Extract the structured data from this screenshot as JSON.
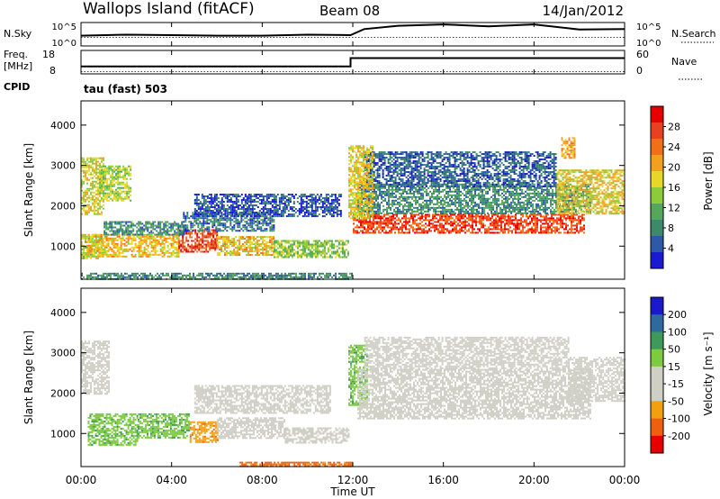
{
  "header": {
    "station": "Wallops Island (fitACF)",
    "beam": "Beam 08",
    "date": "14/Jan/2012"
  },
  "chart_data": [
    {
      "panel": "noise",
      "type": "line",
      "left_label": "N.Sky",
      "right_label": "N.Search",
      "y_ticks": [
        "10^5",
        "10^0"
      ],
      "y_scale": "log",
      "series": [
        {
          "name": "N.Sky",
          "x_hours": [
            0,
            2,
            4,
            6,
            8,
            10,
            11.9,
            12.5,
            14,
            16,
            18,
            20,
            22,
            24
          ],
          "values": [
            2.2,
            2.4,
            2.3,
            2.2,
            2.2,
            2.4,
            2.3,
            3.6,
            4.3,
            4.6,
            4.2,
            4.6,
            3.5,
            3.6
          ]
        },
        {
          "name": "N.Search",
          "x_hours": [
            0,
            24
          ],
          "values": [
            1.8,
            1.8
          ]
        }
      ]
    },
    {
      "panel": "frequency",
      "type": "line",
      "left_label": "Freq.",
      "left_unit": "[MHz]",
      "right_label": "Nave",
      "left_ticks": [
        18,
        8
      ],
      "right_ticks": [
        60,
        0
      ],
      "series": [
        {
          "name": "Freq.",
          "x_hours": [
            0,
            0.1,
            11.9,
            11.9,
            24
          ],
          "values": [
            10.3,
            10.3,
            10.3,
            15.4,
            15.4
          ]
        },
        {
          "name": "Nave",
          "x_hours": [
            0,
            24
          ],
          "values": [
            6,
            6
          ]
        }
      ]
    },
    {
      "panel": "power",
      "type": "heatmap",
      "cpid_label": "CPID",
      "cpid_text": "tau (fast) 503",
      "ylabel": "Slant Range [km]",
      "ylim": [
        180,
        4600
      ],
      "y_ticks": [
        1000,
        2000,
        3000,
        4000
      ],
      "colorbar_label": "Power [dB]",
      "colorbar_ticks": [
        4,
        8,
        12,
        16,
        20,
        24,
        28
      ],
      "colorbar_colors": [
        "#1a1ad0",
        "#2c5aa8",
        "#3d8a6a",
        "#55a85a",
        "#8ccc3a",
        "#e8d628",
        "#f2a020",
        "#f0701a",
        "#e84020",
        "#e60000"
      ],
      "regions": [
        {
          "h": [
            0,
            0.9
          ],
          "r": [
            680,
            1300
          ],
          "v": 17
        },
        {
          "h": [
            0.3,
            4.3
          ],
          "r": [
            760,
            1300
          ],
          "v": 20
        },
        {
          "h": [
            4.3,
            6.0
          ],
          "r": [
            850,
            1420
          ],
          "v": 27
        },
        {
          "h": [
            6.0,
            8.5
          ],
          "r": [
            800,
            1250
          ],
          "v": 20
        },
        {
          "h": [
            8.5,
            11.8
          ],
          "r": [
            720,
            1150
          ],
          "v": 15
        },
        {
          "h": [
            1.0,
            4.5
          ],
          "r": [
            1300,
            1620
          ],
          "v": 10
        },
        {
          "h": [
            4.5,
            8.5
          ],
          "r": [
            1400,
            1850
          ],
          "v": 8
        },
        {
          "h": [
            5.0,
            11.5
          ],
          "r": [
            1750,
            2300
          ],
          "v": 6
        },
        {
          "h": [
            0.0,
            1.0
          ],
          "r": [
            1800,
            3200
          ],
          "v": 18
        },
        {
          "h": [
            0.8,
            2.2
          ],
          "r": [
            2150,
            3000
          ],
          "v": 16
        },
        {
          "h": [
            12.0,
            22.2
          ],
          "r": [
            1350,
            1800
          ],
          "v": 27
        },
        {
          "h": [
            12.2,
            22.5
          ],
          "r": [
            1800,
            2550
          ],
          "v": 10
        },
        {
          "h": [
            12.5,
            21.0
          ],
          "r": [
            2500,
            3350
          ],
          "v": 7
        },
        {
          "h": [
            11.8,
            12.9
          ],
          "r": [
            1700,
            3500
          ],
          "v": 19
        },
        {
          "h": [
            21.0,
            24.0
          ],
          "r": [
            1800,
            2900
          ],
          "v": 19
        },
        {
          "h": [
            21.2,
            21.8
          ],
          "r": [
            3200,
            3700
          ],
          "v": 22
        },
        {
          "h": [
            0.0,
            12.0
          ],
          "r": [
            190,
            340
          ],
          "v": 10
        }
      ]
    },
    {
      "panel": "velocity",
      "type": "heatmap",
      "ylabel": "Slant Range [km]",
      "ylim": [
        180,
        4600
      ],
      "y_ticks": [
        1000,
        2000,
        3000,
        4000
      ],
      "xlabel": "Time UT",
      "x_ticks": [
        "00:00",
        "04:00",
        "08:00",
        "12:00",
        "16:00",
        "20:00",
        "00:00"
      ],
      "colorbar_label": "Velocity [m s⁻¹]",
      "colorbar_ticks": [
        200,
        100,
        50,
        15,
        -15,
        -50,
        -100,
        -200
      ],
      "colorbar_colors": [
        "#1a1acc",
        "#2c6aa0",
        "#3d9a5a",
        "#7ccc40",
        "#cfcfc6",
        "#cfcfc6",
        "#f2a010",
        "#ee6010",
        "#e60000"
      ],
      "regions": [
        {
          "h": [
            0.3,
            2.5
          ],
          "r": [
            700,
            1500
          ],
          "v": 40
        },
        {
          "h": [
            2.5,
            4.8
          ],
          "r": [
            900,
            1500
          ],
          "v": 40
        },
        {
          "h": [
            4.8,
            6.0
          ],
          "r": [
            800,
            1300
          ],
          "v": -40
        },
        {
          "h": [
            6.0,
            9.0
          ],
          "r": [
            900,
            1400
          ],
          "v": 0
        },
        {
          "h": [
            9.0,
            11.8
          ],
          "r": [
            750,
            1150
          ],
          "v": 0
        },
        {
          "h": [
            0.0,
            1.2
          ],
          "r": [
            2000,
            3300
          ],
          "v": 0
        },
        {
          "h": [
            5.0,
            11.0
          ],
          "r": [
            1500,
            2200
          ],
          "v": 0
        },
        {
          "h": [
            11.8,
            12.6
          ],
          "r": [
            1700,
            3200
          ],
          "v": 40
        },
        {
          "h": [
            12.2,
            22.5
          ],
          "r": [
            1350,
            2600
          ],
          "v": 0
        },
        {
          "h": [
            12.5,
            21.5
          ],
          "r": [
            2600,
            3400
          ],
          "v": 0
        },
        {
          "h": [
            21.5,
            24.0
          ],
          "r": [
            1800,
            2900
          ],
          "v": 0
        },
        {
          "h": [
            7.0,
            12.0
          ],
          "r": [
            190,
            300
          ],
          "v": -60
        }
      ]
    }
  ]
}
